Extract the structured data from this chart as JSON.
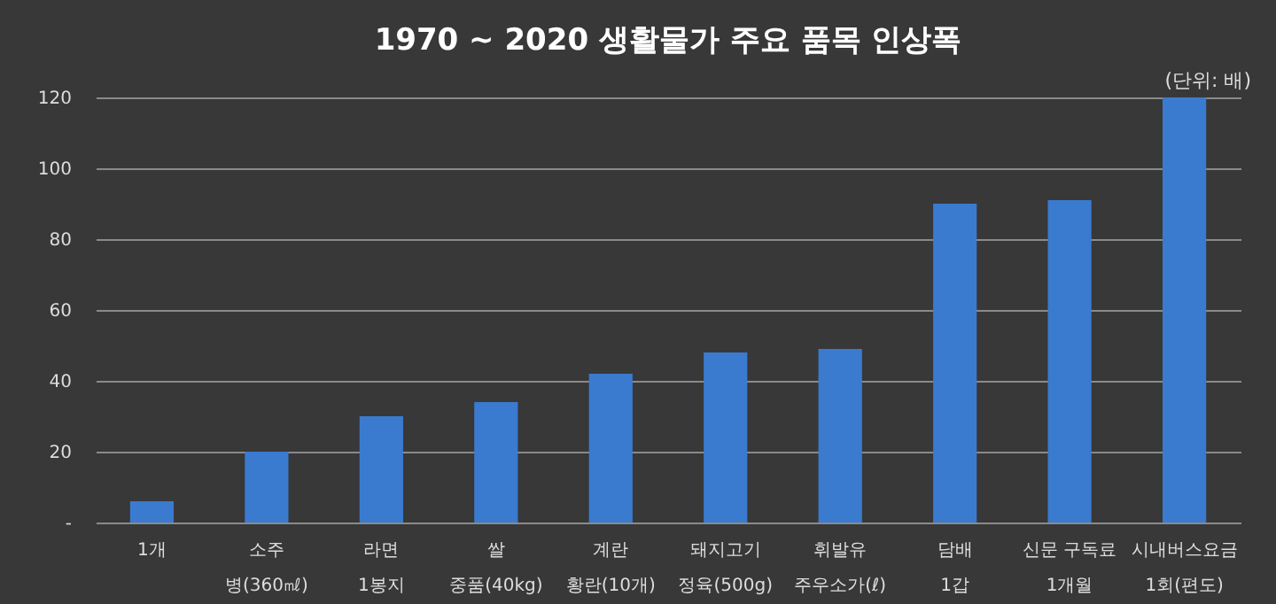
{
  "chart_data": {
    "type": "bar",
    "title": "1970 ~ 2020 생활물가 주요 품목 인상폭",
    "annotations": [
      "(단위: 배)"
    ],
    "categories": [
      "1개",
      "소주\n병(360㎖)",
      "라면\n1봉지",
      "쌀\n중품(40kg)",
      "계란\n황란(10개)",
      "돼지고기\n정육(500g)",
      "휘발유\n주우소가(ℓ)",
      "담배\n1갑",
      "신문 구독료\n1개월",
      "시내버스요금\n1회(편도)"
    ],
    "values": [
      6,
      20,
      30,
      34,
      42,
      48,
      49,
      90,
      91,
      120
    ],
    "color": "#3a7bd0",
    "ylim": [
      0,
      120
    ],
    "yticks": [
      {
        "value": 0,
        "label": "-"
      },
      20,
      40,
      60,
      80,
      100,
      120
    ],
    "grid": "y"
  }
}
